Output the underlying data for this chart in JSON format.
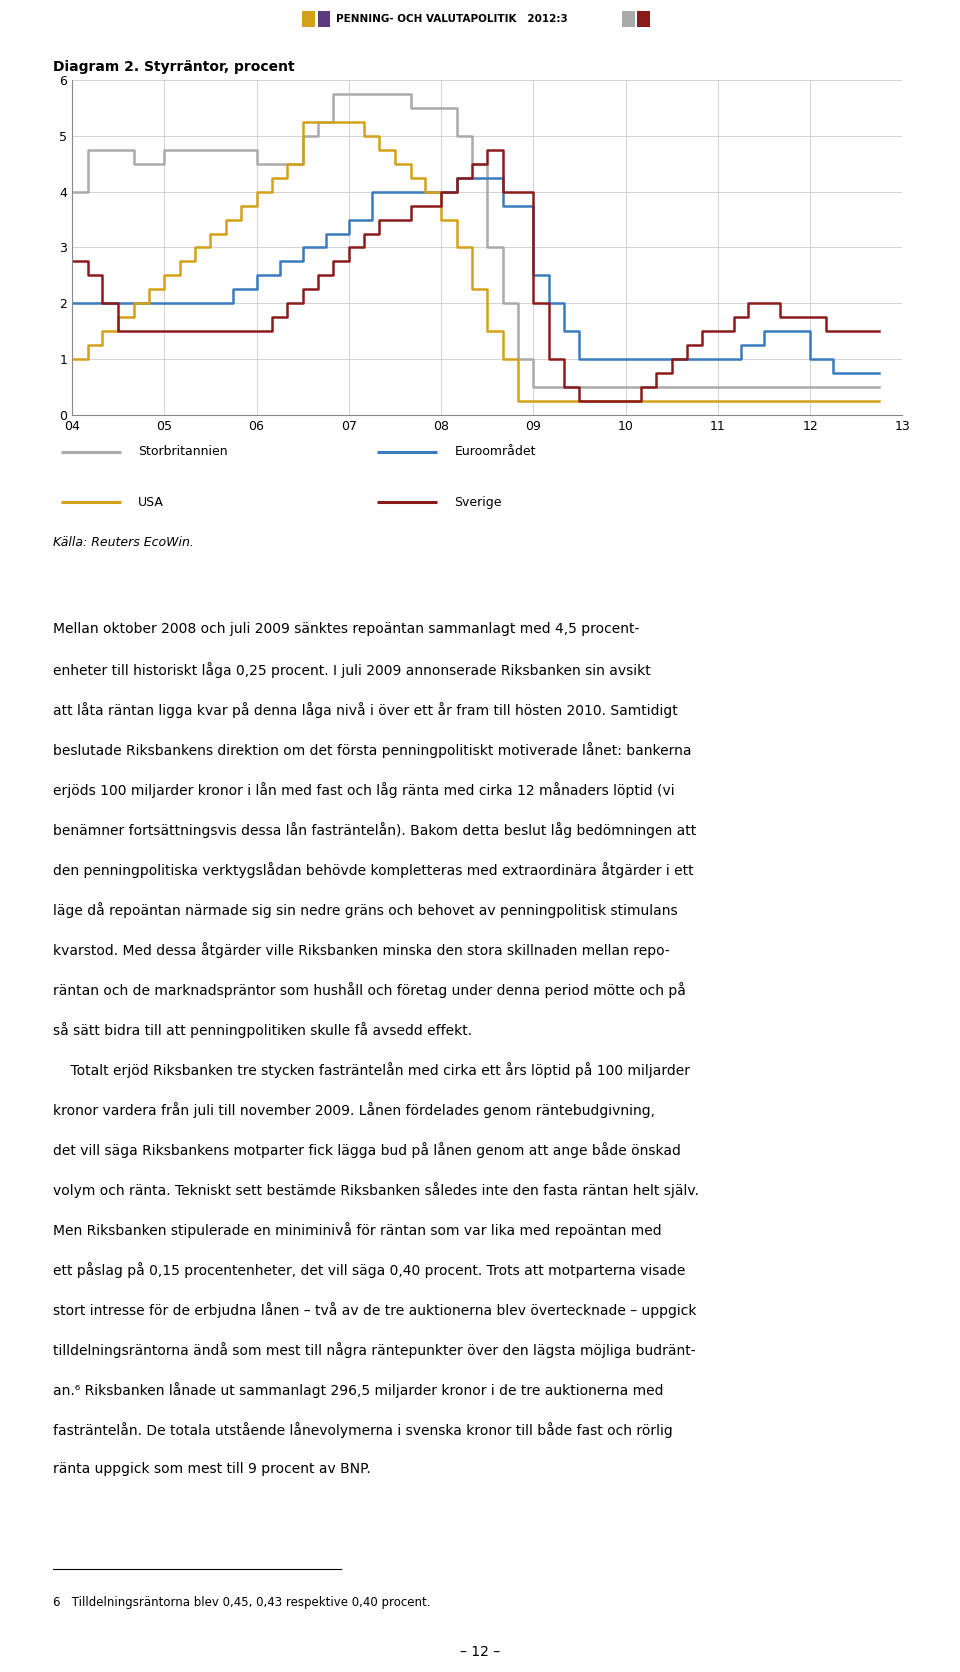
{
  "title": "Diagram 2. Styrräntor, procent",
  "header_text": "PENNING- OCH VALUTAPOLITIK   2012:3",
  "ylim": [
    0,
    6
  ],
  "yticks": [
    0,
    1,
    2,
    3,
    4,
    5,
    6
  ],
  "xtick_labels": [
    "04",
    "05",
    "06",
    "07",
    "08",
    "09",
    "10",
    "11",
    "12",
    "13"
  ],
  "source": "Källa: Reuters EcoWin.",
  "legend_items": [
    {
      "label": "Storbritannien",
      "color": "#aaaaaa"
    },
    {
      "label": "Euroområdet",
      "color": "#3a7abf"
    },
    {
      "label": "USA",
      "color": "#d4a017"
    },
    {
      "label": "Sverige",
      "color": "#8b1a1a"
    }
  ],
  "series": {
    "storbritannien": {
      "color": "#aaaaaa",
      "x": [
        2004.0,
        2004.17,
        2004.5,
        2004.67,
        2004.83,
        2005.0,
        2005.17,
        2005.33,
        2005.5,
        2006.0,
        2006.17,
        2006.5,
        2006.67,
        2006.83,
        2007.0,
        2007.17,
        2007.5,
        2007.67,
        2008.0,
        2008.17,
        2008.33,
        2008.5,
        2008.67,
        2008.83,
        2009.0,
        2009.17,
        2009.33,
        2009.5,
        2009.67,
        2009.83,
        2010.0,
        2010.5,
        2011.0,
        2011.5,
        2012.0,
        2012.5,
        2012.75
      ],
      "y": [
        4.0,
        4.75,
        4.75,
        4.5,
        4.5,
        4.75,
        4.75,
        4.75,
        4.75,
        4.5,
        4.5,
        5.0,
        5.25,
        5.75,
        5.75,
        5.75,
        5.75,
        5.5,
        5.5,
        5.0,
        4.5,
        3.0,
        2.0,
        1.0,
        0.5,
        0.5,
        0.5,
        0.5,
        0.5,
        0.5,
        0.5,
        0.5,
        0.5,
        0.5,
        0.5,
        0.5,
        0.5
      ]
    },
    "euroområdet": {
      "color": "#3a7abf",
      "x": [
        2004.0,
        2004.5,
        2004.75,
        2005.0,
        2005.25,
        2005.5,
        2005.75,
        2006.0,
        2006.25,
        2006.5,
        2006.75,
        2007.0,
        2007.25,
        2007.5,
        2007.75,
        2008.0,
        2008.17,
        2008.5,
        2008.67,
        2009.0,
        2009.17,
        2009.33,
        2009.5,
        2009.67,
        2010.0,
        2010.25,
        2010.5,
        2010.75,
        2011.0,
        2011.25,
        2011.5,
        2011.75,
        2012.0,
        2012.25,
        2012.5,
        2012.75
      ],
      "y": [
        2.0,
        2.0,
        2.0,
        2.0,
        2.0,
        2.0,
        2.25,
        2.5,
        2.75,
        3.0,
        3.25,
        3.5,
        4.0,
        4.0,
        4.0,
        4.0,
        4.25,
        4.25,
        3.75,
        2.5,
        2.0,
        1.5,
        1.0,
        1.0,
        1.0,
        1.0,
        1.0,
        1.0,
        1.0,
        1.25,
        1.5,
        1.5,
        1.0,
        0.75,
        0.75,
        0.75
      ]
    },
    "usa": {
      "color": "#d4a017",
      "x": [
        2004.0,
        2004.17,
        2004.33,
        2004.5,
        2004.67,
        2004.83,
        2005.0,
        2005.17,
        2005.33,
        2005.5,
        2005.67,
        2005.83,
        2006.0,
        2006.17,
        2006.33,
        2006.5,
        2007.0,
        2007.17,
        2007.33,
        2007.5,
        2007.67,
        2007.83,
        2008.0,
        2008.17,
        2008.33,
        2008.5,
        2008.67,
        2008.83,
        2009.0,
        2009.5,
        2010.0,
        2010.5,
        2011.0,
        2011.5,
        2012.0,
        2012.5,
        2012.75
      ],
      "y": [
        1.0,
        1.25,
        1.5,
        1.75,
        2.0,
        2.25,
        2.5,
        2.75,
        3.0,
        3.25,
        3.5,
        3.75,
        4.0,
        4.25,
        4.5,
        5.25,
        5.25,
        5.0,
        4.75,
        4.5,
        4.25,
        4.0,
        3.5,
        3.0,
        2.25,
        1.5,
        1.0,
        0.25,
        0.25,
        0.25,
        0.25,
        0.25,
        0.25,
        0.25,
        0.25,
        0.25,
        0.25
      ]
    },
    "sverige": {
      "color": "#8b1a1a",
      "x": [
        2004.0,
        2004.17,
        2004.33,
        2004.5,
        2005.0,
        2005.5,
        2006.0,
        2006.17,
        2006.33,
        2006.5,
        2006.67,
        2006.83,
        2007.0,
        2007.17,
        2007.33,
        2007.5,
        2007.67,
        2007.83,
        2008.0,
        2008.17,
        2008.33,
        2008.5,
        2008.67,
        2009.0,
        2009.17,
        2009.33,
        2009.5,
        2009.67,
        2009.83,
        2010.0,
        2010.17,
        2010.33,
        2010.5,
        2010.67,
        2010.83,
        2011.0,
        2011.17,
        2011.33,
        2011.5,
        2011.67,
        2012.0,
        2012.17,
        2012.5,
        2012.75
      ],
      "y": [
        2.75,
        2.5,
        2.0,
        1.5,
        1.5,
        1.5,
        1.5,
        1.75,
        2.0,
        2.25,
        2.5,
        2.75,
        3.0,
        3.25,
        3.5,
        3.5,
        3.75,
        3.75,
        4.0,
        4.25,
        4.5,
        4.75,
        4.0,
        2.0,
        1.0,
        0.5,
        0.25,
        0.25,
        0.25,
        0.25,
        0.5,
        0.75,
        1.0,
        1.25,
        1.5,
        1.5,
        1.75,
        2.0,
        2.0,
        1.75,
        1.75,
        1.5,
        1.5,
        1.5
      ]
    }
  },
  "para1": "Mellan oktober 2008 och juli 2009 sänktes repoäntan sammanlagt med 4,5 procent-enheter till historiskt låga 0,25 procent. I juli 2009 annonserade Riksbanken sin avsikt att låta räntan ligga kvar på denna låga nivå i över ett år fram till hösten 2010. Samtidigt beslutade Riksbankens direktion om det första penningpolitiskt motiverade lånet: bankerna erjöds 100 miljarder kronor i lån med fast och låg ränta med cirka 12 månaders löptid (vi benämner fortsättningsvis dessa lån fasträntelån). Bakom detta beslut låg bedömningen att den penningpolitiska verktygslådan behövde kompletteras med extraordinära åtgärder i ett läge då repoäntan närmade sig sin nedre gräns och behovet av penningpolitisk stimulans kvarstod. Med dessa åtgärder ville Riksbanken minska den stora skillnaden mellan repo-räntan och de marknadspräntor som hushåll och företag under denna period mötte och på så sätt bidra till att penningpolitiken skulle få avsedd effekt.",
  "para2": "    Totalt erjöd Riksbanken tre stycken fasträntelån med cirka ett års löptid på 100 miljarder kronor vardera från juli till november 2009. Lånen fördelades genom räntebudgivning, det vill säga Riksbankens motparter fick lägga bud på lånen genom att ange både önskad volym och ränta. Tekniskt sett bestämde Riksbanken således inte den fasta räntan helt själv. Men Riksbanken stipulerade en miniminivå för räntan som var lika med repoäntan med ett påslag på 0,15 procentenheter, det vill säga 0,40 procent. Trots att motparterna visade stort intresse för de erbjudna lånen – två av de tre auktionerna blev övertecknade – uppgick tilldelningsräntorna ändå som mest till några räntepunkter över den lägsta möjliga budränt-an.⁶ Riksbanken lånade ut sammanlagt 296,5 miljarder kronor i de tre auktionerna med fasträntelån. De totala utstående lånevolymerna i svenska kronor till både fast och rörlig ränta uppgick som mest till 9 procent av BNP.",
  "footnote": "6   Tilldelningsräntorna blev 0,45, 0,43 respektive 0,40 procent.",
  "page_number": "– 12 –",
  "hdr_color1": "#d4a017",
  "hdr_color2": "#5b3a7e",
  "hdr_color3": "#aaaaaa",
  "hdr_color4": "#8b1a1a"
}
